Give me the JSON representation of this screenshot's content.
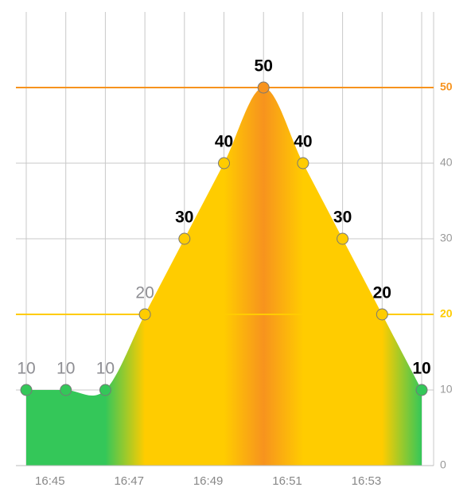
{
  "chart_data": {
    "type": "area",
    "x": [
      1004.4,
      1005.4,
      1006.4,
      1007.4,
      1008.4,
      1009.4,
      1010.4,
      1011.4,
      1012.4,
      1013.4,
      1014.4
    ],
    "values": [
      10,
      10,
      10,
      20,
      30,
      40,
      50,
      40,
      30,
      20,
      10
    ],
    "value_label_colors": [
      "#8e8e93",
      "#8e8e93",
      "#8e8e93",
      "#8e8e93",
      "#000",
      "#000",
      "#000",
      "#000",
      "#000",
      "#000",
      "#000"
    ],
    "xlim": [
      1004.4,
      1014.4
    ],
    "xticks": [
      {
        "value": 1005,
        "label": "16:45"
      },
      {
        "value": 1007,
        "label": "16:47"
      },
      {
        "value": 1009,
        "label": "16:49"
      },
      {
        "value": 1011,
        "label": "16:51"
      },
      {
        "value": 1013,
        "label": "16:53"
      }
    ],
    "ylim": [
      0,
      60
    ],
    "yticks": [
      0,
      10,
      30,
      40
    ],
    "grid": true,
    "limit_lines": [
      {
        "value": 50,
        "color": "#f7931e"
      },
      {
        "value": 20,
        "color": "#ffcc00"
      }
    ],
    "below_color": "#34c759"
  }
}
